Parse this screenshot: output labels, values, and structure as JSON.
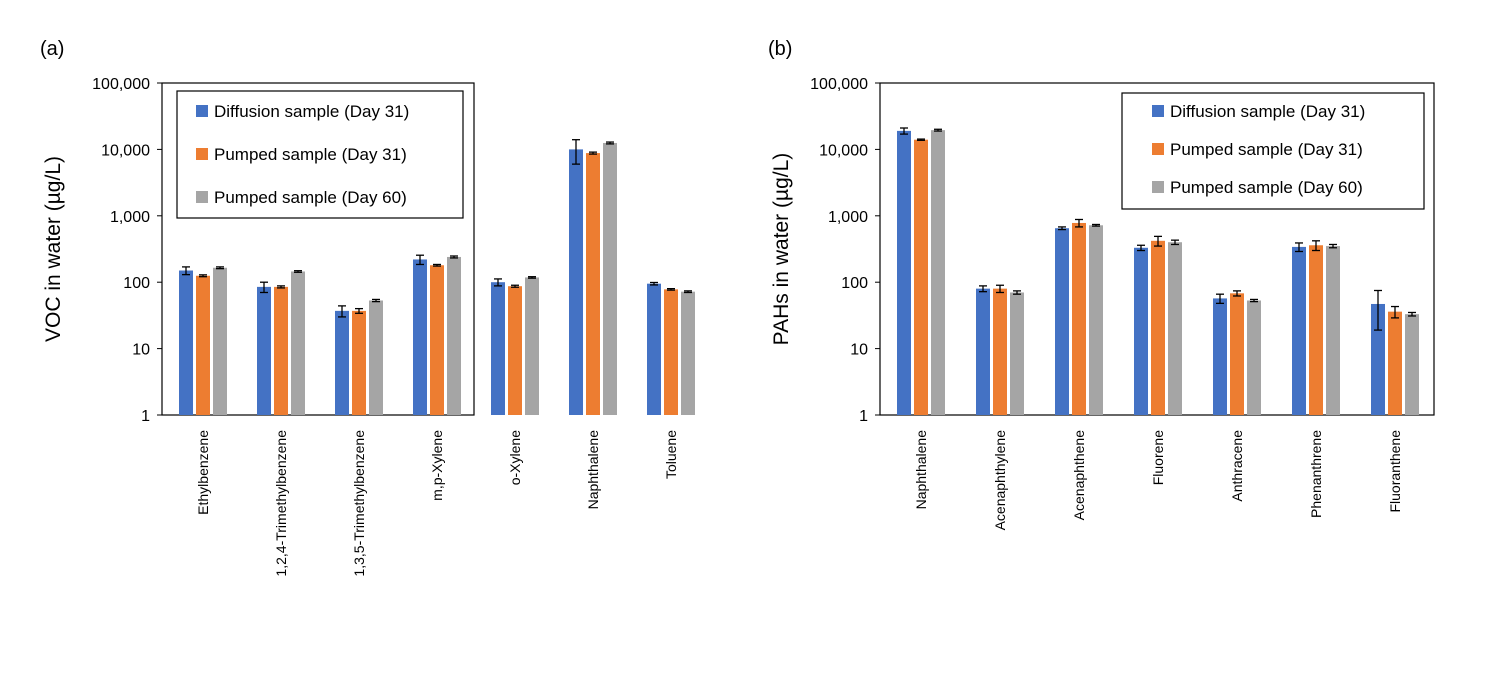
{
  "colors": {
    "diffusion": "#4472C4",
    "pumped31": "#ED7D31",
    "pumped60": "#A5A5A5",
    "axis": "#000000"
  },
  "chart_data": [
    {
      "type": "bar",
      "panel_label": "(a)",
      "ylabel": "VOC in water (µg/L)",
      "yscale": "log",
      "ylim": [
        1,
        100000
      ],
      "yticks": [
        "1",
        "10",
        "100",
        "1,000",
        "10,000",
        "100,000"
      ],
      "legend_position": "top-left",
      "categories": [
        "Ethylbenzene",
        "1,2,4-Trimethylbenzene",
        "1,3,5-Trimethylbenzene",
        "m,p-Xylene",
        "o-Xylene",
        "Naphthalene",
        "Toluene"
      ],
      "series": [
        {
          "name": "Diffusion sample (Day 31)",
          "values": [
            150,
            85,
            37,
            220,
            100,
            10000,
            95
          ],
          "error": [
            20,
            15,
            7,
            35,
            12,
            4000,
            4
          ]
        },
        {
          "name": "Pumped sample (Day 31)",
          "values": [
            125,
            85,
            37,
            180,
            87,
            8800,
            78
          ],
          "error": [
            4,
            3,
            3,
            5,
            3,
            300,
            2
          ]
        },
        {
          "name": "Pumped sample (Day 60)",
          "values": [
            165,
            145,
            53,
            240,
            118,
            12500,
            72
          ],
          "error": [
            5,
            4,
            2,
            8,
            3,
            400,
            2
          ]
        }
      ]
    },
    {
      "type": "bar",
      "panel_label": "(b)",
      "ylabel": "PAHs in water (µg/L)",
      "yscale": "log",
      "ylim": [
        1,
        100000
      ],
      "yticks": [
        "1",
        "10",
        "100",
        "1,000",
        "10,000",
        "100,000"
      ],
      "legend_position": "top-right",
      "categories": [
        "Naphthalene",
        "Acenaphthylene",
        "Acenaphthene",
        "Fluorene",
        "Anthracene",
        "Phenanthrene",
        "Fluoranthene"
      ],
      "series": [
        {
          "name": "Diffusion sample (Day 31)",
          "values": [
            19000,
            80,
            650,
            330,
            57,
            340,
            47
          ],
          "error": [
            2000,
            8,
            30,
            30,
            9,
            50,
            28
          ]
        },
        {
          "name": "Pumped sample (Day 31)",
          "values": [
            14000,
            80,
            780,
            420,
            68,
            360,
            36
          ],
          "error": [
            300,
            10,
            100,
            70,
            6,
            60,
            7
          ]
        },
        {
          "name": "Pumped sample (Day 60)",
          "values": [
            19500,
            70,
            720,
            400,
            53,
            350,
            33
          ],
          "error": [
            600,
            4,
            20,
            30,
            2,
            20,
            2
          ]
        }
      ]
    }
  ]
}
